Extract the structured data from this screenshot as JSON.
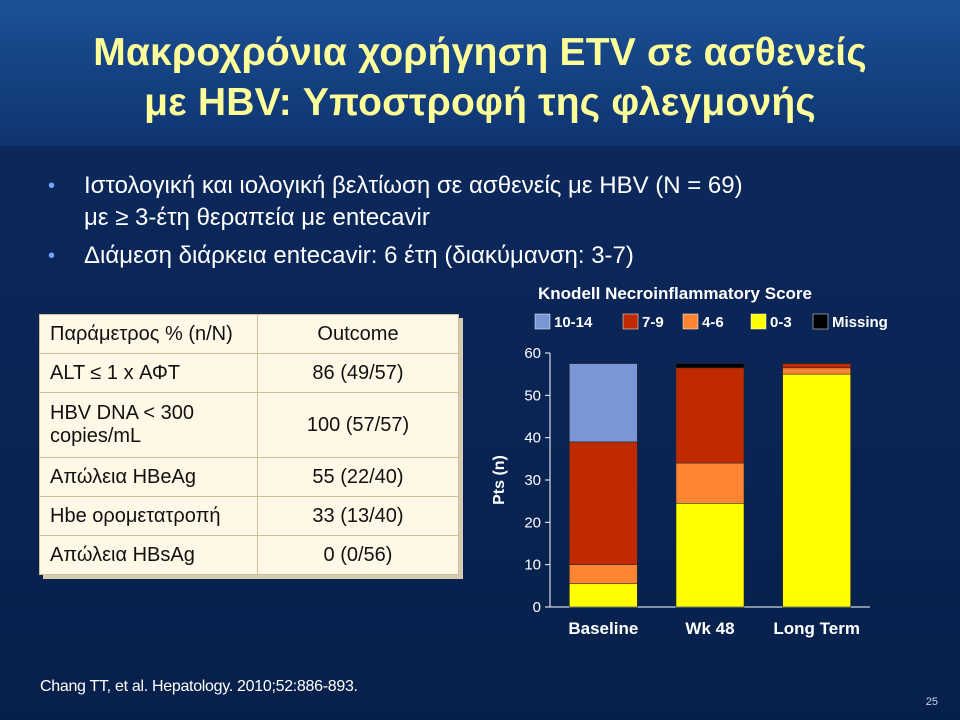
{
  "slide": {
    "title_line1": "Μακροχρόνια χορήγηση ETV σε ασθενείς",
    "title_line2": "με HBV: Υποστροφή της φλεγμονής",
    "bullets": [
      {
        "line1": "Ιστολογική και ιολογική βελτίωση σε ασθενείς με HBV (N = 69)",
        "line2": "με ≥ 3-έτη θεραπεία με entecavir"
      },
      {
        "line1": "Διάμεση διάρκεια entecavir: 6 έτη (διακύμανση: 3-7)",
        "line2": ""
      }
    ],
    "citation": "Chang TT, et al. Hepatology. 2010;52:886-893.",
    "page_number": "25"
  },
  "table": {
    "header": [
      "Παράμετρος % (n/N)",
      "Outcome"
    ],
    "rows": [
      [
        "ALT ≤ 1 x ΑΦΤ",
        "86 (49/57)"
      ],
      [
        "HBV DNA < 300 copies/mL",
        "100 (57/57)"
      ],
      [
        "Απώλεια HBeAg",
        "55 (22/40)"
      ],
      [
        "Hbe ορομετατροπή",
        "33 (13/40)"
      ],
      [
        "Απώλεια HBsAg",
        "0 (0/56)"
      ]
    ]
  },
  "chart_data": {
    "type": "bar",
    "stacked": true,
    "title": "Knodell Necroinflammatory Score",
    "ylabel": "Pts (n)",
    "xlabel": "",
    "ylim": [
      0,
      60
    ],
    "yticks": [
      0,
      10,
      20,
      30,
      40,
      50,
      60
    ],
    "categories": [
      "Baseline",
      "Wk 48",
      "Long Term"
    ],
    "legend_position": "top",
    "series": [
      {
        "name": "0-3",
        "color": "#ffff00",
        "values": [
          5.5,
          24.5,
          55
        ]
      },
      {
        "name": "4-6",
        "color": "#ff8533",
        "values": [
          4.5,
          9.5,
          1.5
        ]
      },
      {
        "name": "7-9",
        "color": "#c02a00",
        "values": [
          29,
          22.5,
          1
        ]
      },
      {
        "name": "10-14",
        "color": "#7a96d6",
        "values": [
          18.5,
          0,
          0
        ]
      },
      {
        "name": "Missing",
        "color": "#000000",
        "values": [
          0,
          1,
          0
        ]
      }
    ],
    "legend_order": [
      "10-14",
      "7-9",
      "4-6",
      "0-3",
      "Missing"
    ]
  }
}
